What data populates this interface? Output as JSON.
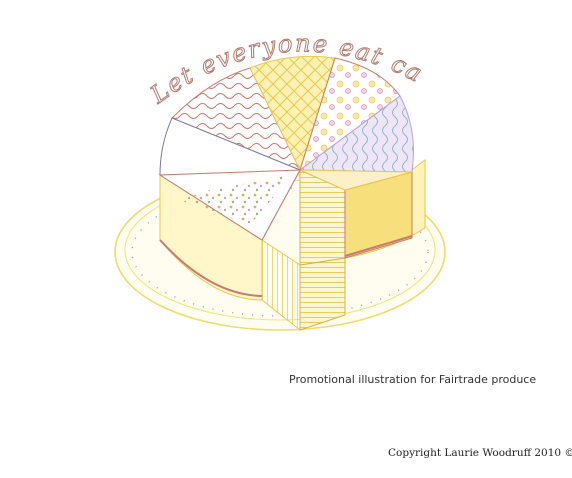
{
  "illustration": {
    "handwritten_title": "Let everyone eat cake...",
    "colors": {
      "pencil_pink": "#c97a6e",
      "pencil_yellow": "#f3e27a",
      "pencil_lilac": "#b9a3d4",
      "pencil_grey": "#8a8a9a",
      "plate_fill": "#fffdf0"
    }
  },
  "caption": "Promotional illustration for Fairtrade produce",
  "copyright": "Copyright Laurie Woodruff 2010 ©"
}
